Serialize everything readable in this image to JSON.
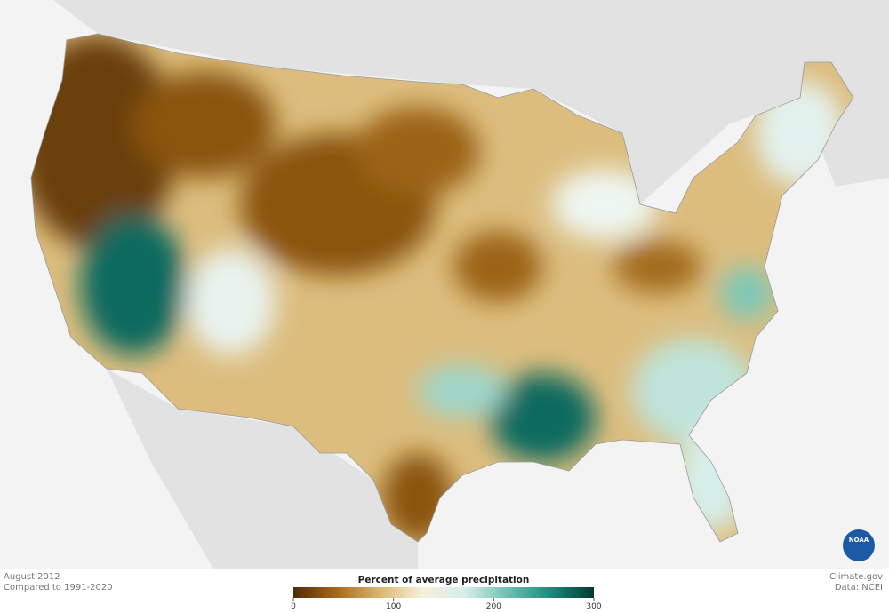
{
  "map": {
    "date": "August 2012",
    "baseline": "Compared to 1991-2020"
  },
  "legend": {
    "title": "Percent of average precipitation",
    "range": [
      0,
      300
    ],
    "ticks": [
      0,
      100,
      200,
      300
    ],
    "colors": [
      "#4e2c05",
      "#a8671a",
      "#d9b56e",
      "#f7f0dc",
      "#d6eee9",
      "#6cc0b2",
      "#1a8a7c",
      "#00392f"
    ]
  },
  "credit": {
    "source": "Climate.gov",
    "data": "Data: NCEI",
    "logo": "NOAA"
  }
}
